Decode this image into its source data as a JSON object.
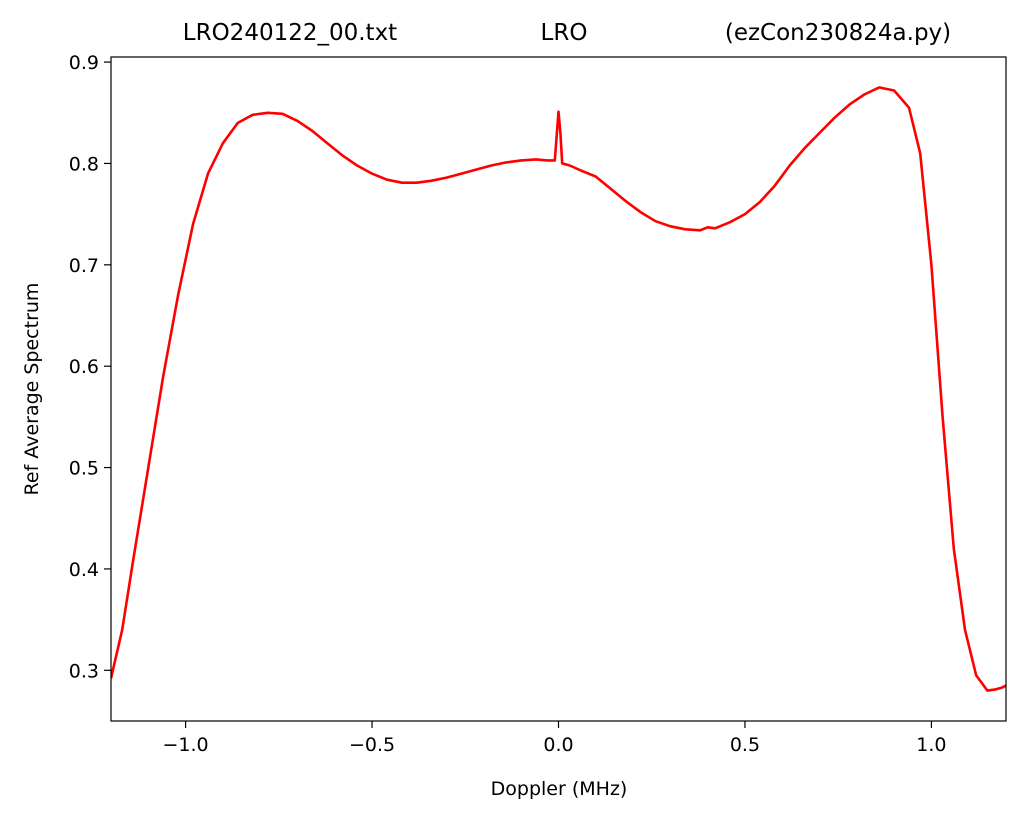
{
  "chart_data": {
    "type": "line",
    "title_left": "LRO240122_00.txt",
    "title_center": "LRO",
    "title_right": "(ezCon230824a.py)",
    "xlabel": "Doppler (MHz)",
    "ylabel": "Ref Average Spectrum",
    "xlim": [
      -1.2,
      1.2
    ],
    "ylim": [
      0.25,
      0.905
    ],
    "xticks": [
      -1.0,
      -0.5,
      0.0,
      0.5,
      1.0
    ],
    "xtick_labels": [
      "−1.0",
      "−0.5",
      "0.0",
      "0.5",
      "1.0"
    ],
    "yticks": [
      0.3,
      0.4,
      0.5,
      0.6,
      0.7,
      0.8,
      0.9
    ],
    "ytick_labels": [
      "0.3",
      "0.4",
      "0.5",
      "0.6",
      "0.7",
      "0.8",
      "0.9"
    ],
    "grid": false,
    "series": [
      {
        "color": "#ff0000",
        "x": [
          -1.2,
          -1.17,
          -1.14,
          -1.1,
          -1.06,
          -1.02,
          -0.98,
          -0.94,
          -0.9,
          -0.86,
          -0.82,
          -0.78,
          -0.74,
          -0.7,
          -0.66,
          -0.62,
          -0.58,
          -0.54,
          -0.5,
          -0.46,
          -0.42,
          -0.38,
          -0.34,
          -0.3,
          -0.26,
          -0.22,
          -0.18,
          -0.14,
          -0.1,
          -0.06,
          -0.03,
          -0.01,
          0.0,
          0.005,
          0.01,
          0.03,
          0.06,
          0.1,
          0.14,
          0.18,
          0.22,
          0.26,
          0.3,
          0.34,
          0.38,
          0.4,
          0.42,
          0.46,
          0.5,
          0.54,
          0.58,
          0.62,
          0.66,
          0.7,
          0.74,
          0.78,
          0.82,
          0.86,
          0.9,
          0.94,
          0.97,
          1.0,
          1.03,
          1.06,
          1.09,
          1.12,
          1.15,
          1.17,
          1.19,
          1.2
        ],
        "y": [
          0.292,
          0.34,
          0.41,
          0.5,
          0.59,
          0.67,
          0.74,
          0.79,
          0.82,
          0.84,
          0.848,
          0.85,
          0.849,
          0.842,
          0.832,
          0.82,
          0.808,
          0.798,
          0.79,
          0.784,
          0.781,
          0.781,
          0.783,
          0.786,
          0.79,
          0.794,
          0.798,
          0.801,
          0.803,
          0.804,
          0.803,
          0.803,
          0.851,
          0.83,
          0.8,
          0.798,
          0.793,
          0.787,
          0.775,
          0.763,
          0.752,
          0.743,
          0.738,
          0.735,
          0.734,
          0.737,
          0.736,
          0.742,
          0.75,
          0.762,
          0.778,
          0.798,
          0.815,
          0.83,
          0.845,
          0.858,
          0.868,
          0.875,
          0.872,
          0.855,
          0.81,
          0.7,
          0.55,
          0.42,
          0.34,
          0.295,
          0.28,
          0.281,
          0.283,
          0.285
        ]
      }
    ]
  }
}
